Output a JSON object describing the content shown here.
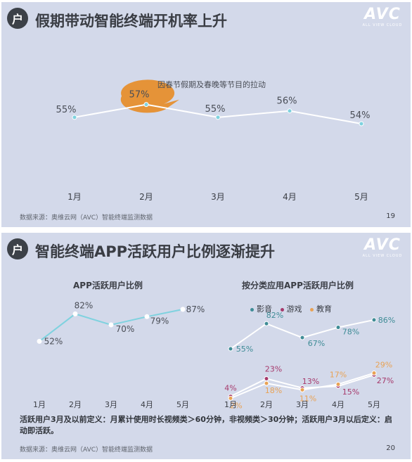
{
  "logo": {
    "main": "AVC",
    "sub": "ALL VIEW CLOUD"
  },
  "source_text": "数据来源：奥维云网（AVC）智能终端监测数据",
  "colors": {
    "background": "#d3d9ea",
    "line_white": "#ffffff",
    "teal": "#3f8c96",
    "magenta": "#a63a6c",
    "orange": "#e8a255",
    "line_cyan": "#7fd2df",
    "callout": "#e59338"
  },
  "slide1": {
    "icon": "户",
    "title": "假期带动智能终端开机率上升",
    "annotation": "因春节假期及春晚等节目的拉动",
    "page": "19"
  },
  "slide2": {
    "icon": "户",
    "title": "智能终端APP活跃用户比例逐渐提升",
    "left_title": "APP活跃用户比例",
    "right_title": "按分类应用APP活跃用户比例",
    "footnote": "活跃用户3月及以前定义：月累计使用时长视频类＞60分钟，非视频类＞30分钟；活跃用户3月以后定义：启动即活跃。",
    "page": "20"
  },
  "chart_data": [
    {
      "type": "line",
      "title": "",
      "categories": [
        "1月",
        "2月",
        "3月",
        "4月",
        "5月"
      ],
      "series": [
        {
          "values": [
            55,
            57,
            55,
            56,
            54
          ]
        }
      ],
      "data_labels": [
        "55%",
        "57%",
        "55%",
        "56%",
        "54%"
      ],
      "ylim": [
        45,
        62
      ],
      "grid": false,
      "annotation": "因春节假期及春晚等节目的拉动"
    },
    {
      "type": "line",
      "title": "APP活跃用户比例",
      "categories": [
        "1月",
        "2月",
        "3月",
        "4月",
        "5月"
      ],
      "series": [
        {
          "values": [
            52,
            82,
            70,
            79,
            87
          ]
        }
      ],
      "data_labels": [
        "52%",
        "82%",
        "70%",
        "79%",
        "87%"
      ],
      "ylim": [
        20,
        100
      ],
      "grid": false
    },
    {
      "type": "line",
      "title": "按分类应用APP活跃用户比例",
      "categories": [
        "1月",
        "2月",
        "3月",
        "4月",
        "5月"
      ],
      "series": [
        {
          "name": "影音",
          "values": [
            55,
            82,
            67,
            78,
            86
          ],
          "data_labels": [
            "55%",
            "82%",
            "67%",
            "78%",
            "86%"
          ]
        },
        {
          "name": "游戏",
          "values": [
            4,
            23,
            13,
            15,
            27
          ],
          "data_labels": [
            "4%",
            "23%",
            "13%",
            "15%",
            "27%"
          ]
        },
        {
          "name": "教育",
          "values": [
            2,
            18,
            11,
            17,
            29
          ],
          "data_labels": [
            "2%",
            "18%",
            "11%",
            "17%",
            "29%"
          ]
        }
      ],
      "ylim": [
        0,
        95
      ],
      "legend": "top",
      "grid": false
    }
  ]
}
